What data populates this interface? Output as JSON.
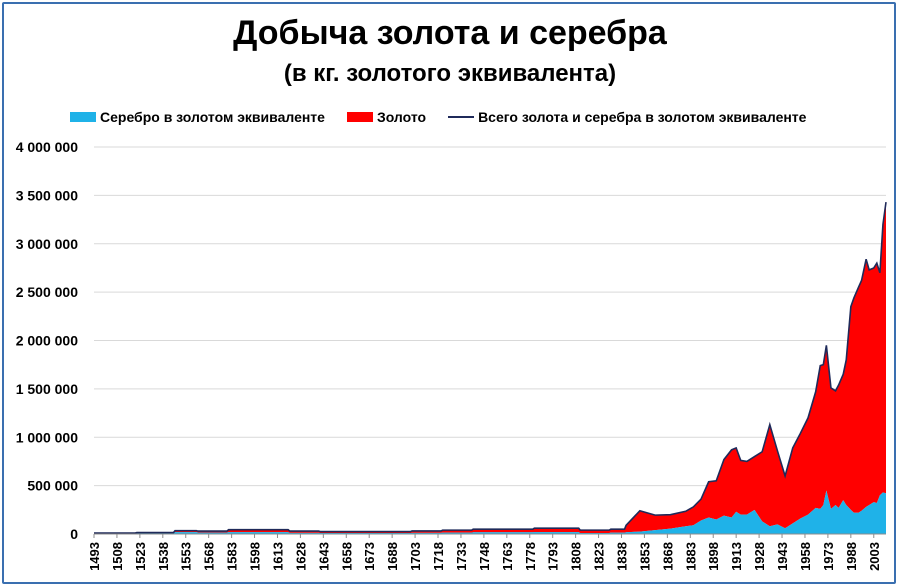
{
  "chart_data": {
    "type": "area",
    "title": "Добыча золота и серебра",
    "subtitle": "(в кг. золотого эквивалента)",
    "ylim": [
      0,
      4000000
    ],
    "yticks": [
      0,
      500000,
      1000000,
      1500000,
      2000000,
      2500000,
      3000000,
      3500000,
      4000000
    ],
    "ytick_labels": [
      "0",
      "500 000",
      "1 000 000",
      "1 500 000",
      "2 000 000",
      "2 500 000",
      "3 000 000",
      "3 500 000",
      "4 000 000"
    ],
    "xlim": [
      1493,
      2011
    ],
    "xticks": [
      1493,
      1508,
      1523,
      1538,
      1553,
      1568,
      1583,
      1598,
      1613,
      1628,
      1643,
      1658,
      1673,
      1688,
      1703,
      1718,
      1733,
      1748,
      1763,
      1778,
      1793,
      1808,
      1823,
      1838,
      1853,
      1868,
      1883,
      1898,
      1913,
      1928,
      1943,
      1958,
      1973,
      1988,
      2003
    ],
    "grid": "horizontal",
    "legend_position": "top",
    "colors": {
      "silver": "#1fb2e8",
      "gold": "#ff0000",
      "total": "#1f2a5a",
      "frame": "#3a6fb0"
    },
    "series": [
      {
        "name": "Серебро в золотом эквиваленте",
        "style": "area",
        "x": [
          1493,
          1520,
          1521,
          1545,
          1546,
          1560,
          1561,
          1580,
          1581,
          1620,
          1621,
          1640,
          1641,
          1700,
          1701,
          1720,
          1721,
          1740,
          1741,
          1780,
          1781,
          1810,
          1811,
          1830,
          1831,
          1840,
          1841,
          1850,
          1860,
          1870,
          1880,
          1885,
          1890,
          1895,
          1900,
          1905,
          1910,
          1913,
          1916,
          1920,
          1925,
          1930,
          1935,
          1940,
          1945,
          1950,
          1955,
          1960,
          1965,
          1968,
          1970,
          1972,
          1975,
          1978,
          1980,
          1983,
          1985,
          1988,
          1990,
          1993,
          1995,
          1998,
          2000,
          2003,
          2005,
          2007,
          2009,
          2011
        ],
        "values": [
          5000,
          5000,
          10000,
          10000,
          20000,
          20000,
          15000,
          15000,
          20000,
          20000,
          12000,
          12000,
          10000,
          10000,
          12000,
          12000,
          14000,
          14000,
          18000,
          18000,
          20000,
          20000,
          10000,
          10000,
          14000,
          14000,
          18000,
          25000,
          40000,
          55000,
          80000,
          90000,
          140000,
          170000,
          150000,
          190000,
          170000,
          230000,
          200000,
          200000,
          250000,
          130000,
          80000,
          100000,
          60000,
          110000,
          160000,
          200000,
          270000,
          260000,
          300000,
          450000,
          260000,
          300000,
          270000,
          350000,
          300000,
          250000,
          220000,
          220000,
          240000,
          280000,
          300000,
          330000,
          320000,
          400000,
          430000,
          420000
        ]
      },
      {
        "name": "Золото",
        "style": "area",
        "x": [
          1493,
          1520,
          1521,
          1545,
          1546,
          1560,
          1561,
          1580,
          1581,
          1620,
          1621,
          1640,
          1641,
          1700,
          1701,
          1720,
          1721,
          1740,
          1741,
          1780,
          1781,
          1810,
          1811,
          1830,
          1831,
          1840,
          1841,
          1850,
          1860,
          1870,
          1880,
          1885,
          1890,
          1895,
          1900,
          1905,
          1910,
          1913,
          1916,
          1920,
          1925,
          1930,
          1935,
          1940,
          1945,
          1950,
          1955,
          1960,
          1965,
          1968,
          1970,
          1972,
          1975,
          1978,
          1980,
          1983,
          1985,
          1988,
          1990,
          1993,
          1995,
          1998,
          2000,
          2003,
          2005,
          2007,
          2009,
          2011
        ],
        "values": [
          5000,
          5000,
          5000,
          5000,
          15000,
          15000,
          15000,
          15000,
          25000,
          25000,
          18000,
          18000,
          15000,
          15000,
          20000,
          20000,
          26000,
          26000,
          32000,
          32000,
          40000,
          40000,
          30000,
          30000,
          36000,
          36000,
          72000,
          215000,
          155000,
          145000,
          155000,
          190000,
          220000,
          370000,
          400000,
          580000,
          700000,
          660000,
          560000,
          550000,
          550000,
          720000,
          1050000,
          760000,
          540000,
          780000,
          880000,
          1000000,
          1200000,
          1480000,
          1450000,
          1500000,
          1250000,
          1180000,
          1270000,
          1300000,
          1500000,
          2100000,
          2220000,
          2330000,
          2380000,
          2560000,
          2430000,
          2420000,
          2480000,
          2300000,
          2770000,
          3010000
        ]
      },
      {
        "name": "Всего золота и серебра в золотом эквиваленте",
        "style": "line",
        "x": [
          1493,
          1520,
          1521,
          1545,
          1546,
          1560,
          1561,
          1580,
          1581,
          1620,
          1621,
          1640,
          1641,
          1700,
          1701,
          1720,
          1721,
          1740,
          1741,
          1780,
          1781,
          1810,
          1811,
          1830,
          1831,
          1840,
          1841,
          1850,
          1860,
          1870,
          1880,
          1885,
          1890,
          1895,
          1900,
          1905,
          1910,
          1913,
          1916,
          1920,
          1925,
          1930,
          1935,
          1940,
          1945,
          1950,
          1955,
          1960,
          1965,
          1968,
          1970,
          1972,
          1975,
          1978,
          1980,
          1983,
          1985,
          1988,
          1990,
          1993,
          1995,
          1998,
          2000,
          2003,
          2005,
          2007,
          2009,
          2011
        ],
        "values": [
          10000,
          10000,
          15000,
          15000,
          35000,
          35000,
          30000,
          30000,
          45000,
          45000,
          30000,
          30000,
          25000,
          25000,
          32000,
          32000,
          40000,
          40000,
          50000,
          50000,
          60000,
          60000,
          40000,
          40000,
          50000,
          50000,
          90000,
          240000,
          195000,
          200000,
          235000,
          280000,
          360000,
          540000,
          550000,
          770000,
          870000,
          890000,
          760000,
          750000,
          800000,
          850000,
          1130000,
          860000,
          600000,
          890000,
          1040000,
          1200000,
          1470000,
          1740000,
          1750000,
          1950000,
          1510000,
          1480000,
          1540000,
          1650000,
          1800000,
          2350000,
          2440000,
          2550000,
          2620000,
          2840000,
          2730000,
          2750000,
          2800000,
          2700000,
          3200000,
          3430000
        ]
      }
    ]
  }
}
